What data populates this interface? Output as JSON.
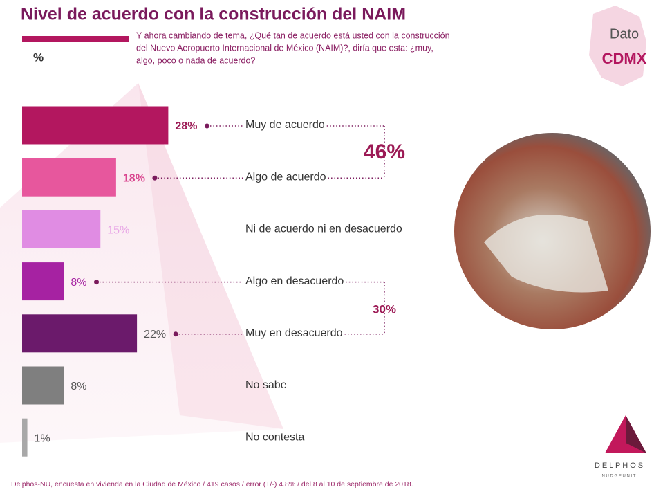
{
  "chart_data": {
    "type": "bar",
    "title": "Nivel de acuerdo con la construcción del NAIM",
    "subtitle": "%",
    "question": [
      "Y ahora cambiando de tema, ¿Qué tan de acuerdo está usted con la construcción",
      "del Nuevo Aeropuerto Internacional de México (NAIM)?, diría que esta: ¿muy,",
      "algo, poco o nada de acuerdo?"
    ],
    "categories": [
      "Muy de acuerdo",
      "Algo de acuerdo",
      "Ni de acuerdo ni en desacuerdo",
      "Algo en desacuerdo",
      "Muy en desacuerdo",
      "No sabe",
      "No contesta"
    ],
    "values": [
      28,
      18,
      15,
      8,
      22,
      8,
      1
    ],
    "value_labels": [
      "28%",
      "18%",
      "15%",
      "8%",
      "22%",
      "8%",
      "1%"
    ],
    "colors": [
      "#b3175f",
      "#e7579d",
      "#e08ce3",
      "#a622a2",
      "#6b1a6b",
      "#7f7f7f",
      "#a8a8a8"
    ],
    "annotations": [
      "46%",
      "30%"
    ]
  },
  "badge": [
    "Dato",
    "CDMX"
  ],
  "logo": [
    "D E L P H O S",
    "N U D G E   U N I T"
  ],
  "footer": "Delphos-NU, encuesta en vivienda en la Ciudad de México / 419 casos / error (+/-) 4.8% / del 8 al 10 de septiembre de 2018."
}
